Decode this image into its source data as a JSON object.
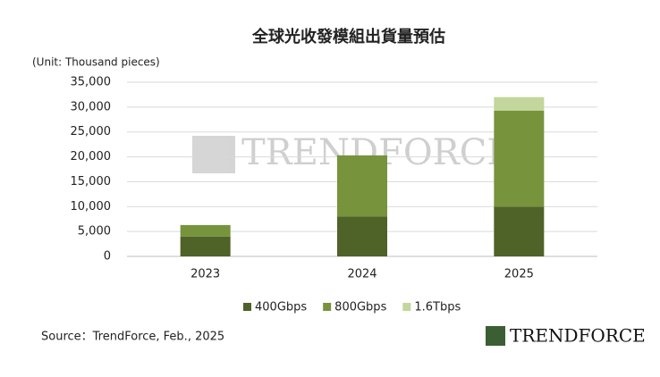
{
  "chart_data": {
    "type": "stacked-bar",
    "title": "全球光收發模組出貨量預估",
    "unit_label": "(Unit: Thousand pieces)",
    "categories": [
      "2023",
      "2024",
      "2025"
    ],
    "series": [
      {
        "name": "400Gbps",
        "color": "#4f6228",
        "values": [
          4000,
          8000,
          10000
        ]
      },
      {
        "name": "800Gbps",
        "color": "#77933c",
        "values": [
          2300,
          12300,
          19300
        ]
      },
      {
        "name": "1.6Tbps",
        "color": "#c3d69b",
        "values": [
          0,
          0,
          2700
        ]
      }
    ],
    "ylim": [
      0,
      35000
    ],
    "yticks": [
      0,
      {
        "value": 5000,
        "label": "5,000"
      },
      {
        "value": 10000,
        "label": "10,000"
      },
      {
        "value": 15000,
        "label": "15,000"
      },
      {
        "value": 20000,
        "label": "20,000"
      },
      {
        "value": 25000,
        "label": "25,000"
      },
      {
        "value": 30000,
        "label": "30,000"
      },
      {
        "value": 35000,
        "label": "35,000"
      }
    ],
    "grid": true,
    "legend": "bottom",
    "source": "Source：TrendForce, Feb., 2025",
    "watermark": "TRENDFORCE",
    "logo": "TRENDFORCE"
  }
}
